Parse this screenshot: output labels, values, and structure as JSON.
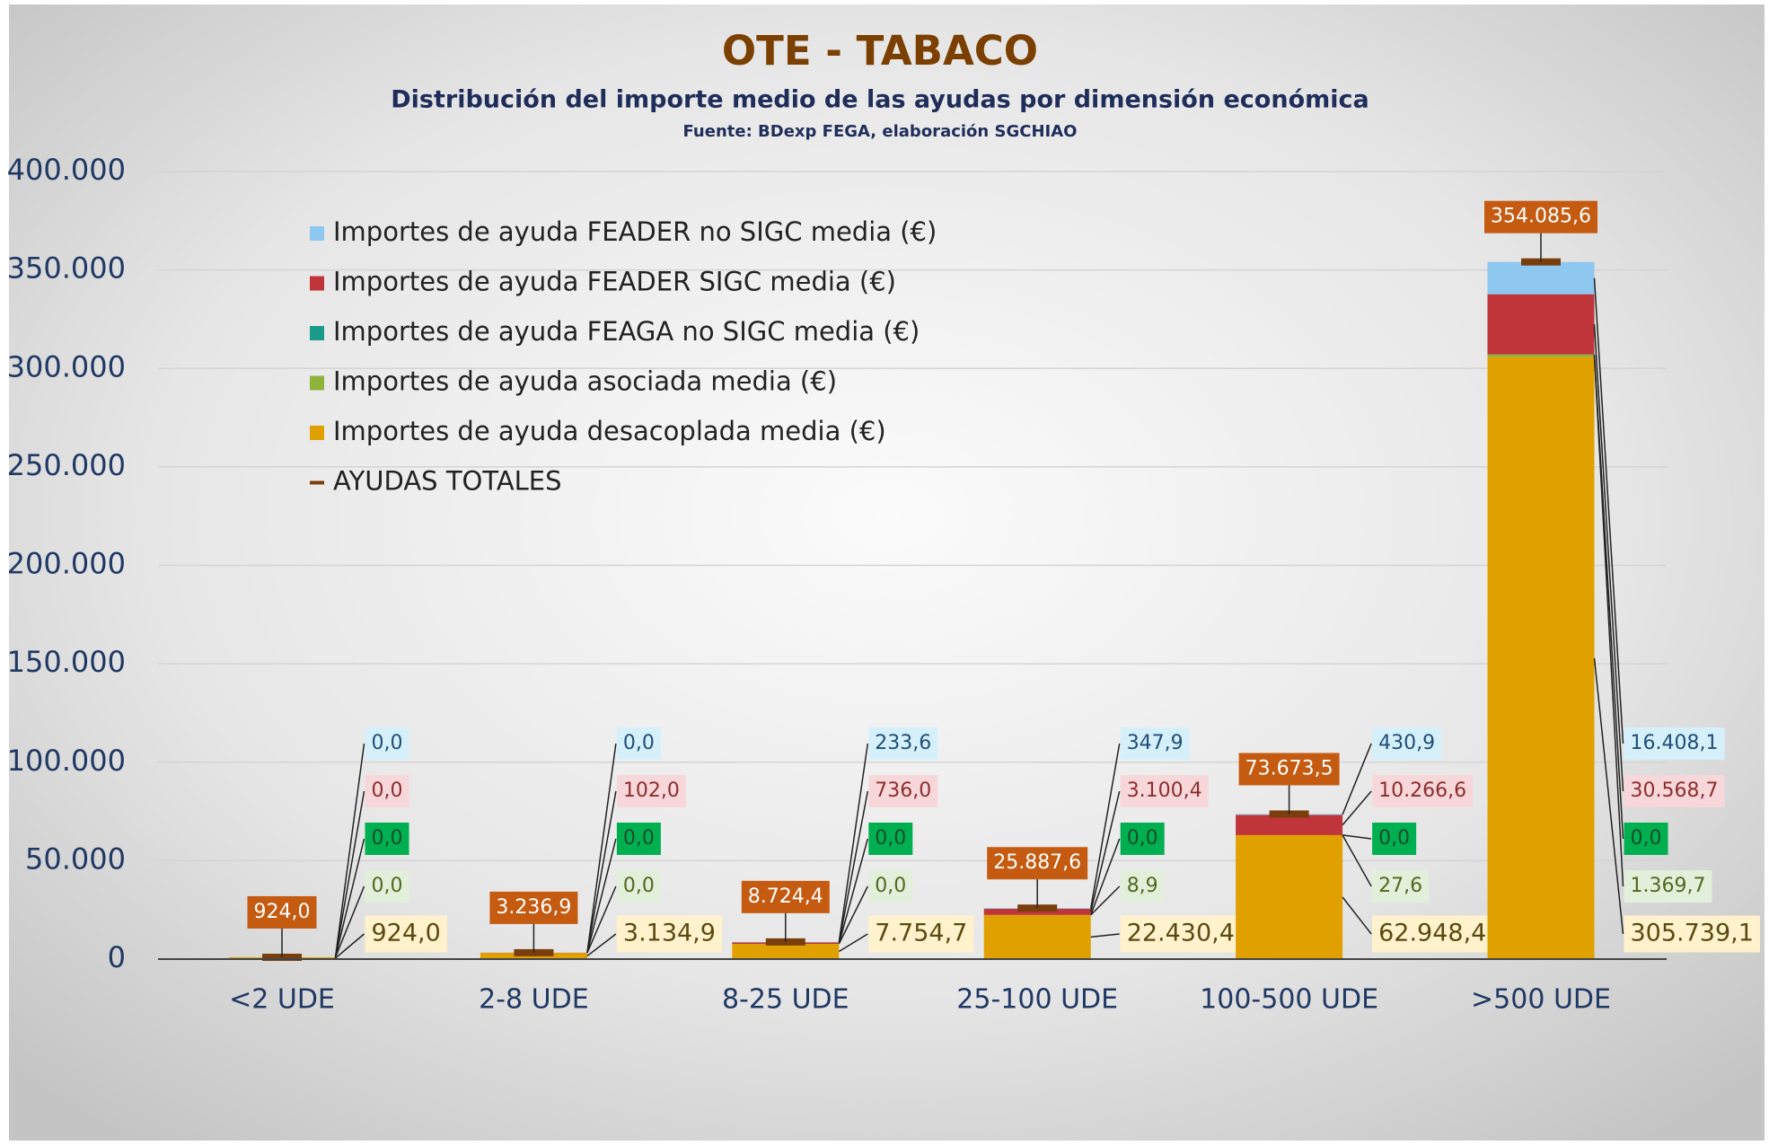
{
  "chart_data": {
    "type": "stacked_bar",
    "title": "OTE - TABACO",
    "subtitle": "Distribución del importe medio de las ayudas por dimensión económica",
    "source": "Fuente: BDexp FEGA, elaboración SGCHIAO",
    "categories": [
      "<2 UDE",
      "2-8 UDE",
      "8-25 UDE",
      "25-100 UDE",
      "100-500 UDE",
      ">500 UDE"
    ],
    "series": [
      {
        "name": "Importes de ayuda desacoplada media (€)",
        "color": "#e0a100",
        "label_bg": "#fff2cc",
        "label_color": "#5a4a10",
        "values": [
          924.0,
          3134.9,
          7754.7,
          22430.4,
          62948.4,
          305739.1
        ],
        "value_labels": [
          "924,0",
          "3.134,9",
          "7.754,7",
          "22.430,4",
          "62.948,4",
          "305.739,1"
        ]
      },
      {
        "name": "Importes de ayuda asociada media (€)",
        "color": "#8db33a",
        "label_bg": "#e2efda",
        "label_color": "#4f6b1f",
        "values": [
          0.0,
          0.0,
          0.0,
          8.9,
          27.6,
          1369.7
        ],
        "value_labels": [
          "0,0",
          "0,0",
          "0,0",
          "8,9",
          "27,6",
          "1.369,7"
        ]
      },
      {
        "name": "Importes de ayuda FEAGA no SIGC media (€)",
        "color": "#1a9b8a",
        "label_bg": "#00b050",
        "label_color": "#1a4d2a",
        "values": [
          0.0,
          0.0,
          0.0,
          0.0,
          0.0,
          0.0
        ],
        "value_labels": [
          "0,0",
          "0,0",
          "0,0",
          "0,0",
          "0,0",
          "0,0"
        ]
      },
      {
        "name": "Importes de ayuda FEADER SIGC media (€)",
        "color": "#c0353a",
        "label_bg": "#f8d7da",
        "label_color": "#8b2e2e",
        "values": [
          0.0,
          102.0,
          736.0,
          3100.4,
          10266.6,
          30568.7
        ],
        "value_labels": [
          "0,0",
          "102,0",
          "736,0",
          "3.100,4",
          "10.266,6",
          "30.568,7"
        ]
      },
      {
        "name": "Importes de ayuda FEADER no SIGC media (€)",
        "color": "#8ec8f0",
        "label_bg": "#d6f0fb",
        "label_color": "#1f4e79",
        "values": [
          0.0,
          0.0,
          233.6,
          347.9,
          430.9,
          16408.1
        ],
        "value_labels": [
          "0,0",
          "0,0",
          "233,6",
          "347,9",
          "430,9",
          "16.408,1"
        ]
      }
    ],
    "totals": {
      "name": "AYUDAS TOTALES",
      "color": "#7a3e0c",
      "label_bg": "#c55a11",
      "label_color": "#ffffff",
      "values": [
        924.0,
        3236.9,
        8724.4,
        25887.6,
        73673.5,
        354085.6
      ],
      "value_labels": [
        "924,0",
        "3.236,9",
        "8.724,4",
        "25.887,6",
        "73.673,5",
        "354.085,6"
      ]
    },
    "ylim": [
      0,
      400000
    ],
    "yticks": [
      0,
      {
        "value": 50000,
        "label": "50.000"
      },
      {
        "value": 100000,
        "label": "100.000"
      },
      {
        "value": 150000,
        "label": "150.000"
      },
      {
        "value": 200000,
        "label": "200.000"
      },
      {
        "value": 250000,
        "label": "250.000"
      },
      {
        "value": 300000,
        "label": "300.000"
      },
      {
        "value": 350000,
        "label": "350.000"
      },
      {
        "value": 400000,
        "label": "400.000"
      }
    ],
    "grid": true
  }
}
